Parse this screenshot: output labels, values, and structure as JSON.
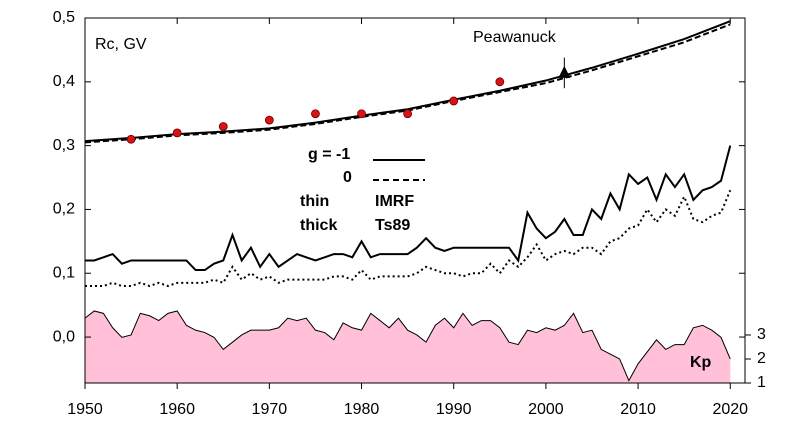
{
  "chart_data": {
    "type": "line",
    "xlim": [
      1950,
      2021.6
    ],
    "xticks": [
      1950,
      1960,
      1970,
      1980,
      1990,
      2000,
      2010,
      2020
    ],
    "ylim": [
      -0.072,
      0.5
    ],
    "yticks": [
      {
        "value": 0.0,
        "label": "0,0"
      },
      {
        "value": 0.1,
        "label": "0,1"
      },
      {
        "value": 0.2,
        "label": "0,2"
      },
      {
        "value": 0.3,
        "label": "0,3"
      },
      {
        "value": 0.4,
        "label": "0,4"
      },
      {
        "value": 0.5,
        "label": "0,5"
      }
    ],
    "y2lim": [
      1,
      16.2
    ],
    "y2ticks": [
      1,
      2,
      3
    ],
    "annotations": [
      "Rc, GV",
      "Peawanuck",
      "g  = -1",
      "0",
      "thin",
      "thick",
      "IMRF",
      "Ts89",
      "Kp"
    ],
    "x": [
      1950,
      1951,
      1952,
      1953,
      1954,
      1955,
      1956,
      1957,
      1958,
      1959,
      1960,
      1961,
      1962,
      1963,
      1964,
      1965,
      1966,
      1967,
      1968,
      1969,
      1970,
      1971,
      1972,
      1973,
      1974,
      1975,
      1976,
      1977,
      1978,
      1979,
      1980,
      1981,
      1982,
      1983,
      1984,
      1985,
      1986,
      1987,
      1988,
      1989,
      1990,
      1991,
      1992,
      1993,
      1994,
      1995,
      1996,
      1997,
      1998,
      1999,
      2000,
      2001,
      2002,
      2003,
      2004,
      2005,
      2006,
      2007,
      2008,
      2009,
      2010,
      2011,
      2012,
      2013,
      2014,
      2015,
      2016,
      2017,
      2018,
      2019,
      2020
    ],
    "series": [
      {
        "type": "area",
        "axis": "y2",
        "color": "#ffc0d8",
        "values": [
          3.7,
          4.0,
          3.9,
          3.3,
          2.9,
          3.0,
          3.9,
          3.8,
          3.6,
          3.9,
          4.0,
          3.4,
          3.2,
          3.1,
          2.9,
          2.4,
          2.7,
          3.0,
          3.2,
          3.2,
          3.2,
          3.3,
          3.7,
          3.6,
          3.7,
          3.2,
          3.1,
          2.8,
          3.5,
          3.3,
          3.2,
          3.9,
          3.6,
          3.3,
          3.7,
          3.2,
          3.0,
          2.7,
          3.4,
          3.7,
          3.3,
          3.9,
          3.4,
          3.6,
          3.6,
          3.3,
          2.7,
          2.6,
          3.2,
          3.1,
          3.3,
          3.2,
          3.4,
          3.9,
          3.1,
          3.2,
          2.4,
          2.2,
          2.0,
          1.1,
          1.8,
          2.3,
          2.8,
          2.4,
          2.6,
          2.6,
          3.3,
          3.4,
          3.2,
          2.9,
          2.0
        ]
      },
      {
        "type": "line",
        "color": "#000000",
        "dash": "solid",
        "values": [
          0.12,
          0.12,
          0.125,
          0.13,
          0.115,
          0.12,
          0.12,
          0.12,
          0.12,
          0.12,
          0.12,
          0.12,
          0.105,
          0.105,
          0.115,
          0.12,
          0.16,
          0.12,
          0.14,
          0.11,
          0.13,
          0.11,
          0.12,
          0.13,
          0.125,
          0.12,
          0.125,
          0.13,
          0.13,
          0.125,
          0.15,
          0.125,
          0.13,
          0.13,
          0.13,
          0.13,
          0.14,
          0.155,
          0.14,
          0.135,
          0.14,
          0.14,
          0.14,
          0.14,
          0.14,
          0.14,
          0.14,
          0.12,
          0.195,
          0.17,
          0.155,
          0.165,
          0.185,
          0.16,
          0.16,
          0.2,
          0.185,
          0.225,
          0.2,
          0.255,
          0.24,
          0.25,
          0.215,
          0.255,
          0.235,
          0.255,
          0.215,
          0.23,
          0.235,
          0.245,
          0.3
        ]
      },
      {
        "type": "line",
        "color": "#000000",
        "dash": "dotted",
        "values": [
          0.08,
          0.08,
          0.08,
          0.085,
          0.08,
          0.08,
          0.085,
          0.08,
          0.085,
          0.08,
          0.085,
          0.085,
          0.085,
          0.085,
          0.09,
          0.085,
          0.11,
          0.09,
          0.1,
          0.09,
          0.095,
          0.085,
          0.09,
          0.09,
          0.09,
          0.09,
          0.09,
          0.095,
          0.095,
          0.09,
          0.105,
          0.09,
          0.095,
          0.095,
          0.095,
          0.095,
          0.1,
          0.11,
          0.105,
          0.1,
          0.1,
          0.095,
          0.1,
          0.1,
          0.115,
          0.1,
          0.12,
          0.11,
          0.125,
          0.145,
          0.12,
          0.13,
          0.135,
          0.13,
          0.14,
          0.14,
          0.13,
          0.15,
          0.155,
          0.17,
          0.175,
          0.2,
          0.18,
          0.2,
          0.19,
          0.22,
          0.185,
          0.18,
          0.19,
          0.195,
          0.23
        ]
      },
      {
        "type": "line",
        "color": "#000000",
        "dash": "solid",
        "x": [
          1950,
          1955,
          1960,
          1965,
          1970,
          1975,
          1980,
          1985,
          1990,
          1995,
          2000,
          2005,
          2010,
          2015,
          2020
        ],
        "values": [
          0.307,
          0.312,
          0.318,
          0.322,
          0.327,
          0.336,
          0.347,
          0.357,
          0.372,
          0.386,
          0.402,
          0.422,
          0.444,
          0.467,
          0.495
        ]
      },
      {
        "type": "line",
        "color": "#000000",
        "dash": "dashed",
        "x": [
          1950,
          1955,
          1960,
          1965,
          1970,
          1975,
          1980,
          1985,
          1990,
          1995,
          2000,
          2005,
          2010,
          2015,
          2020
        ],
        "values": [
          0.305,
          0.31,
          0.316,
          0.32,
          0.325,
          0.334,
          0.345,
          0.355,
          0.37,
          0.384,
          0.398,
          0.418,
          0.44,
          0.462,
          0.49
        ]
      },
      {
        "type": "scatter",
        "marker": "circle",
        "color": "#dd1111",
        "x": [
          1955,
          1960,
          1965,
          1970,
          1975,
          1980,
          1985,
          1990,
          1995
        ],
        "values": [
          0.31,
          0.32,
          0.33,
          0.34,
          0.35,
          0.35,
          0.35,
          0.37,
          0.4
        ]
      },
      {
        "type": "scatter",
        "marker": "triangle",
        "color": "#000000",
        "x": [
          2002
        ],
        "values": [
          0.414
        ],
        "errors": [
          0.024
        ]
      }
    ]
  }
}
